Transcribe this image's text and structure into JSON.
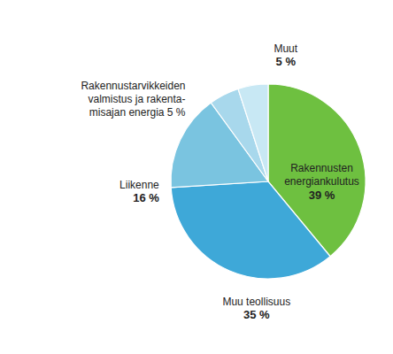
{
  "chart_data": {
    "type": "pie",
    "categories": [
      "Rakennusten\nenergiankulutus",
      "Muu teollisuus",
      "Liikenne",
      "Rakennustarvikkeiden\nvalmistus ja rakenta-\nmisajan energia 5 %",
      "Muut"
    ],
    "values": [
      39,
      35,
      16,
      5,
      5
    ],
    "value_labels": [
      "39 %",
      "35 %",
      "16 %",
      null,
      "5 %"
    ],
    "colors": [
      "#6ec040",
      "#3ea8d8",
      "#7ac4e0",
      "#a8d8ec",
      "#c8e8f4"
    ],
    "data_labels": true
  }
}
